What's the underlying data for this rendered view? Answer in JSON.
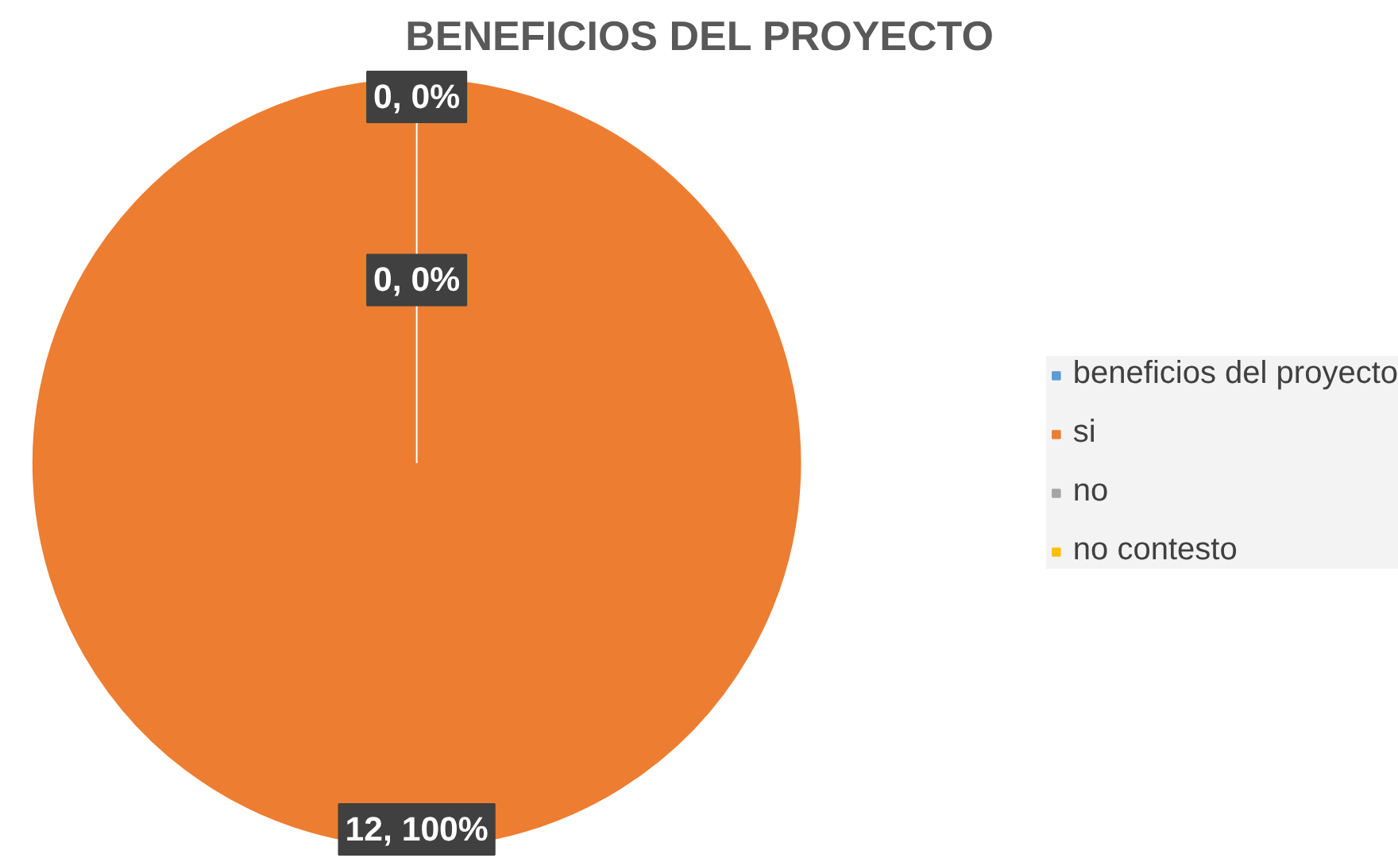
{
  "chart_data": {
    "type": "pie",
    "title": "BENEFICIOS DEL PROYECTO",
    "categories": [
      "beneficios del proyecto",
      "si",
      "no",
      "no contesto"
    ],
    "values": [
      null,
      12,
      0,
      0
    ],
    "colors": [
      "#5b9bd5",
      "#ed7d31",
      "#a5a5a5",
      "#ffc000"
    ],
    "value_labels": [
      null,
      "12, 100%",
      "0, 0%",
      "0, 0%"
    ],
    "legend": "right"
  }
}
